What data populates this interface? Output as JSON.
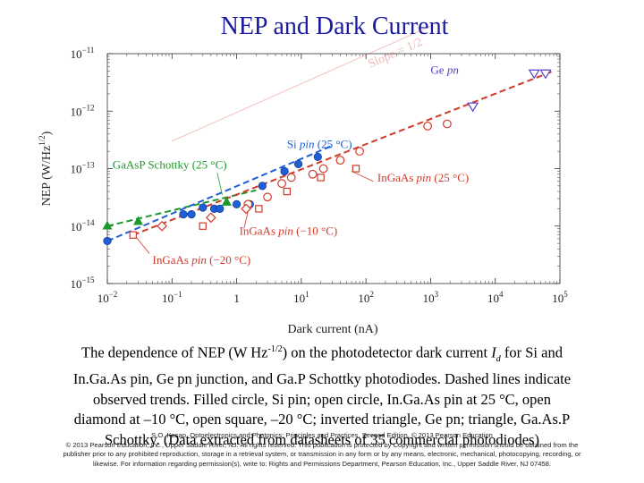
{
  "title": "NEP and Dark Current",
  "caption": {
    "line1_a": "The dependence of NEP (W Hz",
    "line1_sup": "-1/2",
    "line1_b": ") on the photodetector dark current ",
    "line1_sym": "I",
    "line1_sub": "d",
    "line1_c": " for Si and",
    "line2": "In.Ga.As pin, Ge pn junction, and Ga.P Schottky photodiodes. Dashed lines indicate",
    "line3": "observed trends. Filled circle, Si pin; open circle, In.Ga.As pin at 25 °C, open",
    "line4": "diamond at –10 °C, open square, –20 °C; inverted triangle, Ge pn; triangle, Ga.As.P",
    "line5": "Schottky. (Data extracted from datasheets of 35 commercial photodiodes)"
  },
  "credit": {
    "line1": "S.O. Kasap, Optoelectronics and Photonics: Principles and Practices, Second Edition, © 2013 Pearson Education",
    "line2": "© 2013 Pearson Education, Inc., Upper Saddle River, NJ. All rights reserved. This publication is protected by Copyright and written permission should be obtained from the",
    "line3": "publisher prior to any prohibited reproduction, storage in a retrieval system, or transmission in any form or by any means, electronic, mechanical, photocopying, recording, or",
    "line4": "likewise. For information regarding permission(s), write to: Rights and Permissions Department, Pearson Education, Inc., Upper Saddle River, NJ 07458."
  },
  "colors": {
    "title": "#1a1aa0",
    "si": "#1f5fd6",
    "ingaas": "#d03a2a",
    "ge": "#5a3bd0",
    "gaasp": "#1a9a2a",
    "slope": "#d03a2a"
  },
  "chart_data": {
    "type": "scatter",
    "x_scale": "log",
    "y_scale": "log",
    "xlabel": "Dark current (nA)",
    "ylabel": "NEP (W/Hz",
    "ylabel_sup": "1/2",
    "ylabel_close": ")",
    "xlim": [
      0.01,
      100000
    ],
    "ylim": [
      1e-15,
      1e-11
    ],
    "x_ticks": [
      {
        "v": 0.01,
        "base": "10",
        "exp": "−2"
      },
      {
        "v": 0.1,
        "base": "10",
        "exp": "−1"
      },
      {
        "v": 1,
        "base": "1",
        "exp": ""
      },
      {
        "v": 10,
        "base": "10",
        "exp": "1"
      },
      {
        "v": 100,
        "base": "10",
        "exp": "2"
      },
      {
        "v": 1000,
        "base": "10",
        "exp": "3"
      },
      {
        "v": 10000,
        "base": "10",
        "exp": "4"
      },
      {
        "v": 100000,
        "base": "10",
        "exp": "5"
      }
    ],
    "y_ticks": [
      {
        "v": 1e-11,
        "base": "10",
        "exp": "−11"
      },
      {
        "v": 1e-12,
        "base": "10",
        "exp": "−12"
      },
      {
        "v": 1e-13,
        "base": "10",
        "exp": "−13"
      },
      {
        "v": 1e-14,
        "base": "10",
        "exp": "−14"
      },
      {
        "v": 1e-15,
        "base": "10",
        "exp": "−15"
      }
    ],
    "series": [
      {
        "key": "si",
        "marker": "filled-circle",
        "points": [
          [
            0.01,
            5.5e-15
          ],
          [
            0.15,
            1.6e-14
          ],
          [
            0.2,
            1.6e-14
          ],
          [
            0.3,
            2.1e-14
          ],
          [
            0.45,
            2e-14
          ],
          [
            0.55,
            2e-14
          ],
          [
            1.0,
            2.4e-14
          ],
          [
            1.6,
            2.4e-14
          ],
          [
            2.5,
            5e-14
          ],
          [
            5.5,
            9e-14
          ],
          [
            9,
            1.2e-13
          ],
          [
            18,
            1.6e-13
          ]
        ]
      },
      {
        "key": "gaasp",
        "marker": "filled-triangle",
        "points": [
          [
            0.01,
            1e-14
          ],
          [
            0.03,
            1.2e-14
          ],
          [
            0.7,
            2.6e-14
          ]
        ]
      },
      {
        "key": "ingaas25",
        "marker": "open-circle",
        "points": [
          [
            1.5,
            2.4e-14
          ],
          [
            3,
            3.2e-14
          ],
          [
            5,
            5.5e-14
          ],
          [
            7,
            7e-14
          ],
          [
            15,
            8e-14
          ],
          [
            22,
            1e-13
          ],
          [
            40,
            1.4e-13
          ],
          [
            80,
            2e-13
          ],
          [
            900,
            5.5e-13
          ],
          [
            1800,
            6e-13
          ]
        ]
      },
      {
        "key": "ingaas10",
        "marker": "open-diamond",
        "points": [
          [
            0.07,
            1e-14
          ],
          [
            0.4,
            1.4e-14
          ],
          [
            1.4,
            2e-14
          ]
        ]
      },
      {
        "key": "ingaas20",
        "marker": "open-square",
        "points": [
          [
            0.025,
            7e-15
          ],
          [
            0.3,
            1e-14
          ],
          [
            2.2,
            2e-14
          ],
          [
            6,
            4e-14
          ],
          [
            20,
            7e-14
          ],
          [
            70,
            1e-13
          ]
        ]
      },
      {
        "key": "ge",
        "marker": "open-inverted-triangle",
        "points": [
          [
            4500,
            1.2e-12
          ],
          [
            40000,
            4.5e-12
          ],
          [
            60000,
            4.5e-12
          ]
        ]
      }
    ],
    "trend_lines": [
      {
        "key": "gaasp",
        "from": [
          0.01,
          1e-14
        ],
        "to": [
          2,
          4.2e-14
        ]
      },
      {
        "key": "si",
        "from": [
          0.01,
          5.5e-15
        ],
        "to": [
          30,
          2.5e-13
        ]
      },
      {
        "key": "ingaas",
        "from": [
          0.025,
          7e-15
        ],
        "to": [
          80000,
          5e-12
        ]
      }
    ],
    "annotations": [
      {
        "key": "ge",
        "text": "Ge ",
        "ital": "pn",
        "tail": "",
        "at": [
          1000,
          4.5e-12
        ],
        "leader": null
      },
      {
        "key": "si",
        "text": "Si ",
        "ital": "pin",
        "tail": " (25 °C)",
        "at": [
          6,
          2.3e-13
        ],
        "leader": null
      },
      {
        "key": "gaasp",
        "text": "GaAsP Schottky (25 °C)",
        "ital": "",
        "tail": "",
        "at": [
          0.012,
          1e-13
        ],
        "leader": [
          [
            0.5,
            8.5e-14
          ],
          [
            0.6,
            3.5e-14
          ]
        ]
      },
      {
        "key": "ingaas25",
        "text": "InGaAs ",
        "ital": "pin",
        "tail": " (25 °C)",
        "at": [
          150,
          6e-14
        ],
        "leader": [
          [
            130,
            6e-14
          ],
          [
            60,
            9e-14
          ]
        ]
      },
      {
        "key": "ingaas10",
        "text": "InGaAs ",
        "ital": "pin",
        "tail": " (−10 °C)",
        "at": [
          1.1,
          7e-15
        ],
        "leader": [
          [
            1.3,
            9e-15
          ],
          [
            1.5,
            1.8e-14
          ]
        ]
      },
      {
        "key": "ingaas20",
        "text": "InGaAs ",
        "ital": "pin",
        "tail": " (−20 °C)",
        "at": [
          0.05,
          2.2e-15
        ],
        "leader": [
          [
            0.045,
            3.3e-15
          ],
          [
            0.028,
            6.4e-15
          ]
        ]
      }
    ],
    "slope_label": "Slope = 1/2",
    "slope_line": {
      "from": [
        0.1,
        3e-13
      ],
      "to": [
        1000,
        3e-11
      ]
    }
  }
}
